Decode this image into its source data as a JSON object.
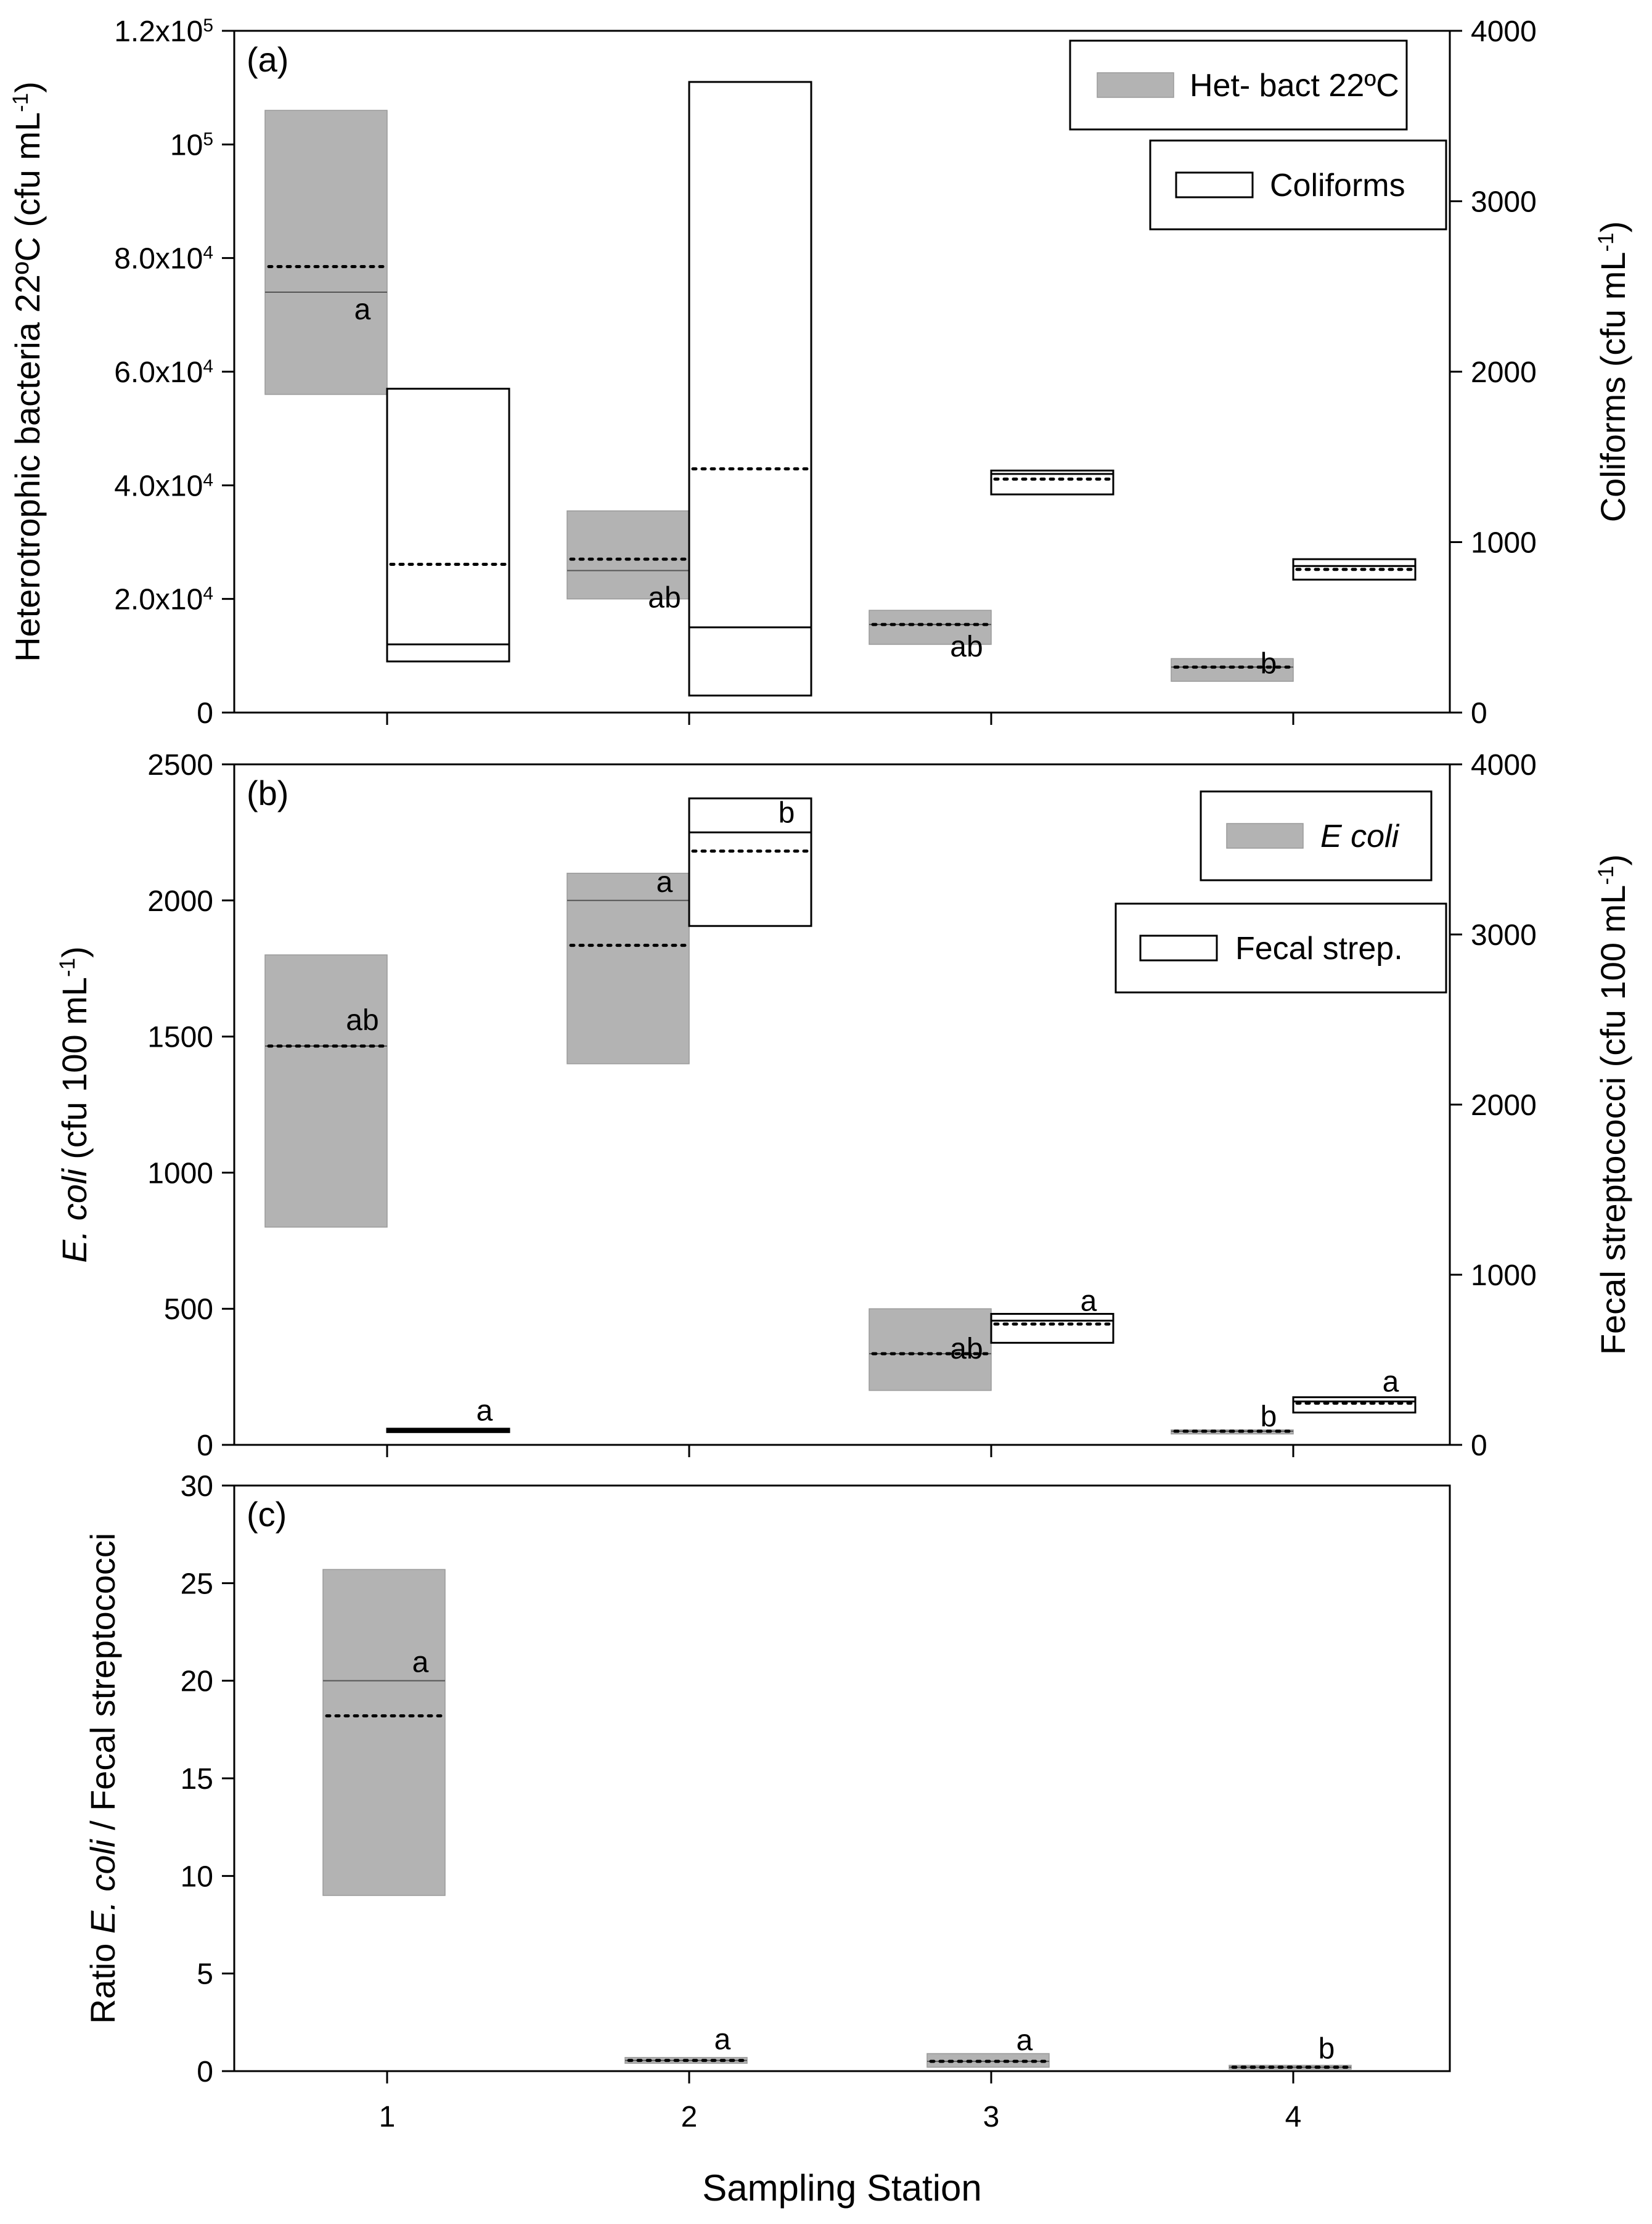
{
  "chart_data": [
    {
      "type": "box",
      "panel_label": "(a)",
      "x_categories": [
        "1",
        "2",
        "3",
        "4"
      ],
      "y_left": {
        "label_parts": [
          "Heterotrophic bacteria 22ºC (cfu mL",
          "-1",
          ")"
        ],
        "ylim": [
          0,
          120000
        ],
        "ticks": [
          {
            "value": 0,
            "parts": [
              "0"
            ]
          },
          {
            "value": 20000,
            "parts": [
              "2.0x10",
              "4"
            ]
          },
          {
            "value": 40000,
            "parts": [
              "4.0x10",
              "4"
            ]
          },
          {
            "value": 60000,
            "parts": [
              "6.0x10",
              "4"
            ]
          },
          {
            "value": 80000,
            "parts": [
              "8.0x10",
              "4"
            ]
          },
          {
            "value": 100000,
            "parts": [
              "10",
              "5"
            ]
          },
          {
            "value": 120000,
            "parts": [
              "1.2x10",
              "5"
            ]
          }
        ]
      },
      "y_right": {
        "label_parts": [
          "Coliforms (cfu mL",
          "-1",
          ")"
        ],
        "ylim": [
          0,
          4000
        ],
        "ticks": [
          0,
          1000,
          2000,
          3000,
          4000
        ]
      },
      "series": [
        {
          "name": "Het- bact 22ºC",
          "axis": "left",
          "style": "filled",
          "boxes": [
            {
              "station": 1,
              "low": 56000,
              "high": 106000,
              "median": 74000,
              "mean": 78500,
              "letter": "a"
            },
            {
              "station": 2,
              "low": 20000,
              "high": 35500,
              "median": 25000,
              "mean": 27000,
              "letter": "ab"
            },
            {
              "station": 3,
              "low": 12000,
              "high": 18000,
              "median": 15500,
              "mean": 15500,
              "letter": "ab"
            },
            {
              "station": 4,
              "low": 5500,
              "high": 9500,
              "median": 8000,
              "mean": 8000,
              "letter": "b"
            }
          ]
        },
        {
          "name": "Coliforms",
          "axis": "right",
          "style": "open",
          "boxes": [
            {
              "station": 1,
              "low": 300,
              "high": 1900,
              "median": 400,
              "mean": 870
            },
            {
              "station": 2,
              "low": 100,
              "high": 3700,
              "median": 500,
              "mean": 1430
            },
            {
              "station": 3,
              "low": 1280,
              "high": 1420,
              "median": 1400,
              "mean": 1370
            },
            {
              "station": 4,
              "low": 780,
              "high": 900,
              "median": 860,
              "mean": 840
            }
          ]
        }
      ]
    },
    {
      "type": "box",
      "panel_label": "(b)",
      "x_categories": [
        "1",
        "2",
        "3",
        "4"
      ],
      "y_left": {
        "label_parts": [
          "E. coli",
          " (cfu 100 mL",
          "-1",
          ")"
        ],
        "ylim": [
          0,
          2500
        ],
        "ticks": [
          {
            "value": 0,
            "parts": [
              "0"
            ]
          },
          {
            "value": 500,
            "parts": [
              "500"
            ]
          },
          {
            "value": 1000,
            "parts": [
              "1000"
            ]
          },
          {
            "value": 1500,
            "parts": [
              "1500"
            ]
          },
          {
            "value": 2000,
            "parts": [
              "2000"
            ]
          },
          {
            "value": 2500,
            "parts": [
              "2500"
            ]
          }
        ]
      },
      "y_right": {
        "label_parts": [
          "Fecal streptococci (cfu 100 mL",
          "-1",
          ")"
        ],
        "ylim": [
          0,
          4000
        ],
        "ticks": [
          0,
          1000,
          2000,
          3000,
          4000
        ]
      },
      "series": [
        {
          "name": "E coli",
          "axis": "left",
          "style": "filled",
          "boxes": [
            {
              "station": 1,
              "low": 800,
              "high": 1800,
              "median": 1465,
              "mean": 1465,
              "letter": "ab"
            },
            {
              "station": 2,
              "low": 1400,
              "high": 2100,
              "median": 2000,
              "mean": 1835,
              "letter": "a"
            },
            {
              "station": 3,
              "low": 200,
              "high": 500,
              "median": 335,
              "mean": 335,
              "letter": "ab"
            },
            {
              "station": 4,
              "low": 40,
              "high": 55,
              "median": 50,
              "mean": 50,
              "letter": "b"
            }
          ]
        },
        {
          "name": "Fecal strep.",
          "axis": "right",
          "style": "open",
          "boxes": [
            {
              "station": 1,
              "low": 75,
              "high": 95,
              "median": 85,
              "mean": 85,
              "letter": "a"
            },
            {
              "station": 2,
              "low": 3050,
              "high": 3800,
              "median": 3600,
              "mean": 3490,
              "letter": "b"
            },
            {
              "station": 3,
              "low": 600,
              "high": 770,
              "median": 730,
              "mean": 710,
              "letter": "a"
            },
            {
              "station": 4,
              "low": 190,
              "high": 280,
              "median": 255,
              "mean": 245,
              "letter": "a"
            }
          ]
        }
      ]
    },
    {
      "type": "box",
      "panel_label": "(c)",
      "x_label": "Sampling Station",
      "x_categories": [
        "1",
        "2",
        "3",
        "4"
      ],
      "y_left": {
        "label_parts": [
          "Ratio ",
          "E. coli",
          " / Fecal streptococci"
        ],
        "ylim": [
          0,
          30
        ],
        "ticks": [
          {
            "value": 0,
            "parts": [
              "0"
            ]
          },
          {
            "value": 5,
            "parts": [
              "5"
            ]
          },
          {
            "value": 10,
            "parts": [
              "10"
            ]
          },
          {
            "value": 15,
            "parts": [
              "15"
            ]
          },
          {
            "value": 20,
            "parts": [
              "20"
            ]
          },
          {
            "value": 25,
            "parts": [
              "25"
            ]
          },
          {
            "value": 30,
            "parts": [
              "30"
            ]
          }
        ]
      },
      "series": [
        {
          "name": "Ratio E. coli / Fecal streptococci",
          "axis": "left",
          "style": "filled",
          "boxes": [
            {
              "station": 1,
              "low": 9,
              "high": 25.7,
              "median": 20,
              "mean": 18.2,
              "letter": "a"
            },
            {
              "station": 2,
              "low": 0.4,
              "high": 0.7,
              "median": 0.55,
              "mean": 0.55,
              "letter": "a"
            },
            {
              "station": 3,
              "low": 0.2,
              "high": 0.9,
              "median": 0.5,
              "mean": 0.5,
              "letter": "a"
            },
            {
              "station": 4,
              "low": 0.1,
              "high": 0.3,
              "median": 0.2,
              "mean": 0.2,
              "letter": "b"
            }
          ]
        }
      ]
    }
  ]
}
